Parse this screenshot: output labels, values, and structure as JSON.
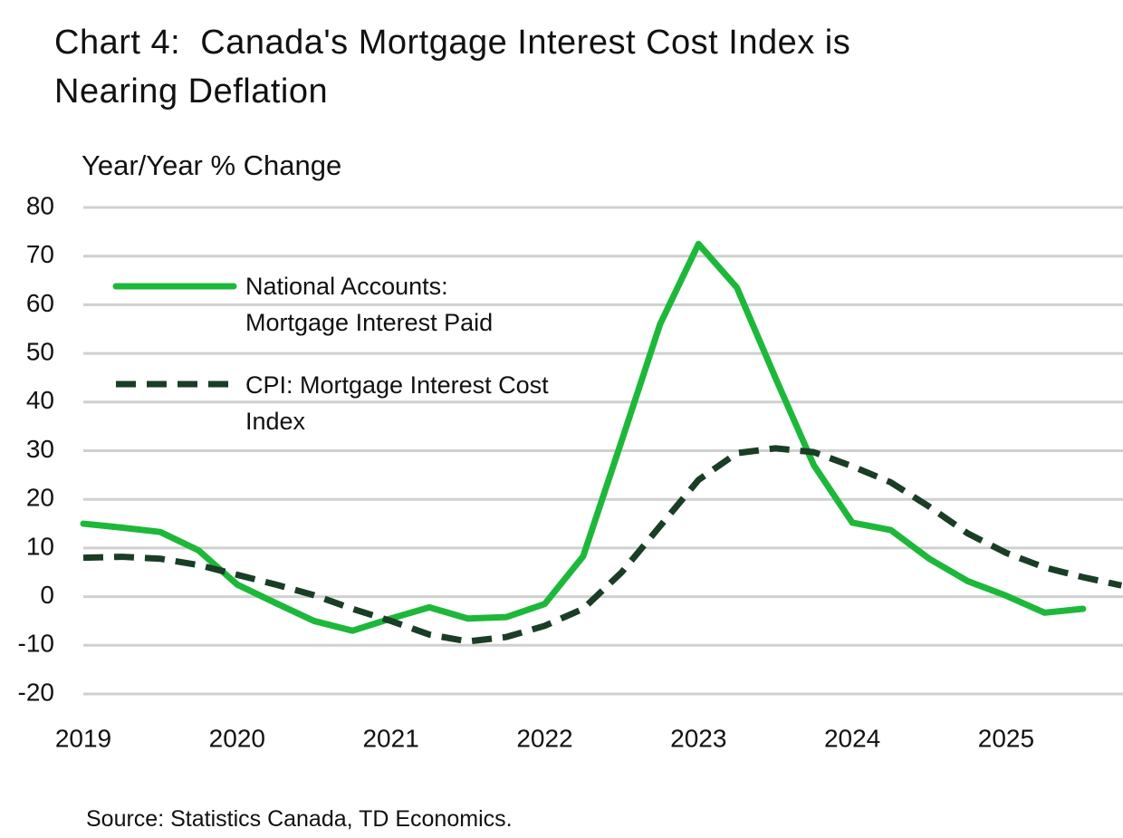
{
  "chart_data": {
    "type": "line",
    "title": "Chart 4:  Canada's Mortgage Interest Cost Index is Nearing Deflation",
    "y_label": "Year/Year % Change",
    "source": "Source:  Statistics Canada, TD Economics.",
    "x": [
      2019,
      2019.25,
      2019.5,
      2019.75,
      2020,
      2020.25,
      2020.5,
      2020.75,
      2021,
      2021.25,
      2021.5,
      2021.75,
      2022,
      2022.25,
      2022.5,
      2022.75,
      2023,
      2023.25,
      2023.5,
      2023.75,
      2024,
      2024.25,
      2024.5,
      2024.75,
      2025,
      2025.25,
      2025.5,
      2025.75
    ],
    "series": [
      {
        "name": "National Accounts: Mortgage Interest Paid",
        "color": "#1db83a",
        "dashed": false,
        "values": [
          15,
          14.2,
          13.3,
          9.5,
          2.5,
          -1.3,
          -5,
          -7,
          -4.5,
          -2.2,
          -4.5,
          -4.2,
          -1.5,
          8.3,
          32,
          56,
          72.5,
          63.5,
          45,
          27,
          15.2,
          13.7,
          7.8,
          3.2,
          0.2,
          -3.3,
          -2.5,
          null
        ]
      },
      {
        "name": "CPI: Mortgage Interest Cost Index",
        "color": "#1a3d26",
        "dashed": true,
        "values": [
          8,
          8.2,
          7.8,
          6.5,
          4.5,
          2.5,
          0.3,
          -2.5,
          -5,
          -7.8,
          -9.2,
          -8.3,
          -6,
          -2.5,
          5,
          14.5,
          24,
          29.5,
          30.5,
          29.7,
          26.8,
          23.5,
          18.5,
          13,
          9,
          6,
          4,
          2.3
        ]
      }
    ],
    "xlim": [
      2019,
      2025.76
    ],
    "xticks": [
      2019,
      2020,
      2021,
      2022,
      2023,
      2024,
      2025
    ],
    "ylim": [
      -20,
      80
    ],
    "yticks": [
      -20,
      -10,
      0,
      10,
      20,
      30,
      40,
      50,
      60,
      70,
      80
    ],
    "grid": true
  }
}
